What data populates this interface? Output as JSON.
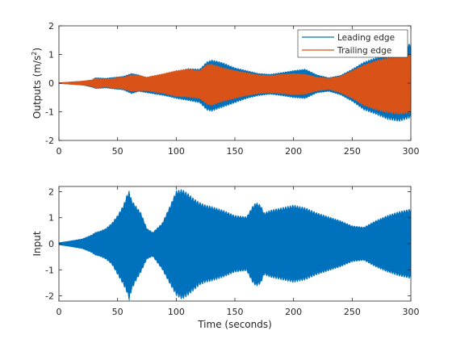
{
  "chart_data": [
    {
      "type": "line",
      "ylabel": "Outputs (m/s",
      "ylabel_sup": "2",
      "ylabel_close": ")",
      "xlabel": "",
      "xlim": [
        0,
        300
      ],
      "ylim": [
        -2,
        2
      ],
      "xticks": [
        0,
        50,
        100,
        150,
        200,
        250,
        300
      ],
      "yticks": [
        -2,
        -1,
        0,
        1,
        2
      ],
      "grid": false,
      "legend_position": "top-right",
      "series": [
        {
          "name": "Leading edge",
          "color": "#0072BD",
          "envelope": {
            "t": [
              0,
              10,
              20,
              28,
              31,
              40,
              55,
              62,
              68,
              75,
              90,
              100,
              110,
              120,
              126,
              130,
              135,
              140,
              150,
              160,
              170,
              180,
              190,
              200,
              210,
              220,
              230,
              240,
              250,
              260,
              270,
              280,
              290,
              300
            ],
            "upper": [
              0.02,
              0.05,
              0.08,
              0.12,
              0.2,
              0.18,
              0.25,
              0.35,
              0.3,
              0.2,
              0.3,
              0.42,
              0.52,
              0.5,
              0.75,
              0.82,
              0.78,
              0.72,
              0.55,
              0.45,
              0.35,
              0.32,
              0.38,
              0.45,
              0.5,
              0.3,
              0.2,
              0.28,
              0.5,
              0.75,
              0.9,
              1.05,
              1.25,
              1.4
            ],
            "lower": [
              -0.02,
              -0.05,
              -0.08,
              -0.15,
              -0.2,
              -0.18,
              -0.25,
              -0.38,
              -0.3,
              -0.35,
              -0.45,
              -0.55,
              -0.62,
              -0.7,
              -0.95,
              -1.0,
              -0.92,
              -0.85,
              -0.7,
              -0.55,
              -0.45,
              -0.4,
              -0.45,
              -0.52,
              -0.55,
              -0.35,
              -0.3,
              -0.42,
              -0.65,
              -0.95,
              -1.1,
              -1.28,
              -1.35,
              -1.22
            ]
          }
        },
        {
          "name": "Trailing edge",
          "color": "#D95319",
          "envelope": {
            "t": [
              0,
              10,
              20,
              28,
              31,
              40,
              55,
              62,
              68,
              75,
              90,
              100,
              110,
              120,
              126,
              130,
              135,
              140,
              150,
              160,
              170,
              180,
              190,
              200,
              210,
              220,
              230,
              240,
              250,
              260,
              270,
              280,
              290,
              300
            ],
            "upper": [
              0.02,
              0.05,
              0.08,
              0.12,
              0.18,
              0.15,
              0.22,
              0.3,
              0.28,
              0.22,
              0.35,
              0.45,
              0.5,
              0.45,
              0.65,
              0.68,
              0.62,
              0.55,
              0.45,
              0.38,
              0.3,
              0.28,
              0.32,
              0.35,
              0.32,
              0.22,
              0.18,
              0.25,
              0.45,
              0.65,
              0.8,
              0.9,
              0.95,
              1.02
            ],
            "lower": [
              -0.02,
              -0.05,
              -0.08,
              -0.12,
              -0.18,
              -0.15,
              -0.22,
              -0.3,
              -0.28,
              -0.28,
              -0.38,
              -0.48,
              -0.5,
              -0.55,
              -0.75,
              -0.8,
              -0.72,
              -0.65,
              -0.55,
              -0.45,
              -0.38,
              -0.35,
              -0.38,
              -0.42,
              -0.4,
              -0.28,
              -0.22,
              -0.35,
              -0.55,
              -0.8,
              -0.95,
              -1.05,
              -1.1,
              -1.05
            ]
          }
        }
      ]
    },
    {
      "type": "line",
      "ylabel": "Input",
      "xlabel": "Time (seconds)",
      "xlim": [
        0,
        300
      ],
      "ylim": [
        -2.2,
        2.2
      ],
      "xticks": [
        0,
        50,
        100,
        150,
        200,
        250,
        300
      ],
      "yticks": [
        -2,
        -1,
        0,
        1,
        2
      ],
      "grid": false,
      "series": [
        {
          "color": "#0072BD",
          "envelope": {
            "t": [
              0,
              10,
              20,
              28,
              31,
              35,
              40,
              45,
              50,
              55,
              58,
              60,
              62,
              65,
              70,
              75,
              80,
              88,
              95,
              100,
              105,
              110,
              115,
              120,
              125,
              130,
              140,
              150,
              160,
              165,
              168,
              172,
              175,
              180,
              190,
              200,
              210,
              220,
              230,
              240,
              250,
              260,
              270,
              280,
              290,
              300
            ],
            "upper": [
              0.05,
              0.12,
              0.2,
              0.35,
              0.45,
              0.5,
              0.6,
              0.8,
              1.1,
              1.5,
              1.9,
              2.05,
              1.7,
              1.5,
              1.2,
              0.6,
              0.45,
              0.8,
              1.5,
              2.05,
              2.1,
              1.95,
              1.75,
              1.6,
              1.5,
              1.45,
              1.3,
              1.1,
              1.05,
              1.45,
              1.6,
              1.5,
              1.2,
              1.3,
              1.4,
              1.5,
              1.4,
              1.2,
              1.05,
              0.9,
              0.7,
              0.65,
              0.9,
              1.1,
              1.25,
              1.35
            ],
            "lower": [
              -0.05,
              -0.12,
              -0.2,
              -0.35,
              -0.45,
              -0.5,
              -0.6,
              -0.8,
              -1.2,
              -1.6,
              -1.9,
              -2.2,
              -1.8,
              -1.5,
              -1.1,
              -0.6,
              -0.5,
              -1.0,
              -1.6,
              -2.0,
              -2.15,
              -2.0,
              -1.8,
              -1.6,
              -1.5,
              -1.45,
              -1.3,
              -1.1,
              -1.05,
              -1.5,
              -1.65,
              -1.55,
              -1.2,
              -1.3,
              -1.4,
              -1.5,
              -1.4,
              -1.2,
              -1.05,
              -0.9,
              -0.7,
              -0.65,
              -0.9,
              -1.1,
              -1.25,
              -1.35
            ]
          }
        }
      ]
    }
  ]
}
